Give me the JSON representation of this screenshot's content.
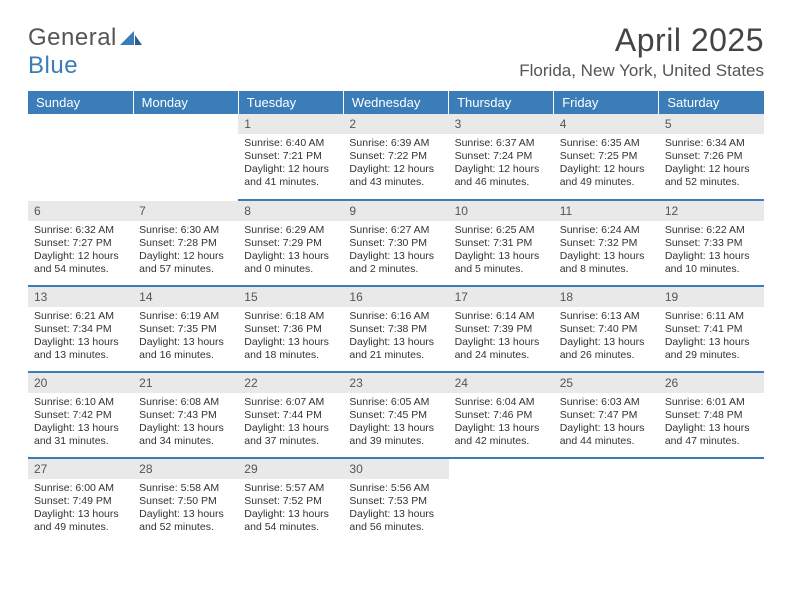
{
  "logo": {
    "word1": "General",
    "word2": "Blue"
  },
  "title": "April 2025",
  "location": "Florida, New York, United States",
  "colors": {
    "header_bg": "#3a7db8",
    "header_fg": "#ffffff",
    "daynum_bg": "#e9e9e9",
    "body_bg": "#ffffff",
    "rule": "#3a7db8",
    "text": "#333333"
  },
  "weekdays": [
    "Sunday",
    "Monday",
    "Tuesday",
    "Wednesday",
    "Thursday",
    "Friday",
    "Saturday"
  ],
  "weeks": [
    [
      {
        "empty": true
      },
      {
        "empty": true
      },
      {
        "n": "1",
        "sr": "Sunrise: 6:40 AM",
        "ss": "Sunset: 7:21 PM",
        "dl1": "Daylight: 12 hours",
        "dl2": "and 41 minutes."
      },
      {
        "n": "2",
        "sr": "Sunrise: 6:39 AM",
        "ss": "Sunset: 7:22 PM",
        "dl1": "Daylight: 12 hours",
        "dl2": "and 43 minutes."
      },
      {
        "n": "3",
        "sr": "Sunrise: 6:37 AM",
        "ss": "Sunset: 7:24 PM",
        "dl1": "Daylight: 12 hours",
        "dl2": "and 46 minutes."
      },
      {
        "n": "4",
        "sr": "Sunrise: 6:35 AM",
        "ss": "Sunset: 7:25 PM",
        "dl1": "Daylight: 12 hours",
        "dl2": "and 49 minutes."
      },
      {
        "n": "5",
        "sr": "Sunrise: 6:34 AM",
        "ss": "Sunset: 7:26 PM",
        "dl1": "Daylight: 12 hours",
        "dl2": "and 52 minutes."
      }
    ],
    [
      {
        "n": "6",
        "sr": "Sunrise: 6:32 AM",
        "ss": "Sunset: 7:27 PM",
        "dl1": "Daylight: 12 hours",
        "dl2": "and 54 minutes."
      },
      {
        "n": "7",
        "sr": "Sunrise: 6:30 AM",
        "ss": "Sunset: 7:28 PM",
        "dl1": "Daylight: 12 hours",
        "dl2": "and 57 minutes."
      },
      {
        "n": "8",
        "sr": "Sunrise: 6:29 AM",
        "ss": "Sunset: 7:29 PM",
        "dl1": "Daylight: 13 hours",
        "dl2": "and 0 minutes."
      },
      {
        "n": "9",
        "sr": "Sunrise: 6:27 AM",
        "ss": "Sunset: 7:30 PM",
        "dl1": "Daylight: 13 hours",
        "dl2": "and 2 minutes."
      },
      {
        "n": "10",
        "sr": "Sunrise: 6:25 AM",
        "ss": "Sunset: 7:31 PM",
        "dl1": "Daylight: 13 hours",
        "dl2": "and 5 minutes."
      },
      {
        "n": "11",
        "sr": "Sunrise: 6:24 AM",
        "ss": "Sunset: 7:32 PM",
        "dl1": "Daylight: 13 hours",
        "dl2": "and 8 minutes."
      },
      {
        "n": "12",
        "sr": "Sunrise: 6:22 AM",
        "ss": "Sunset: 7:33 PM",
        "dl1": "Daylight: 13 hours",
        "dl2": "and 10 minutes."
      }
    ],
    [
      {
        "n": "13",
        "sr": "Sunrise: 6:21 AM",
        "ss": "Sunset: 7:34 PM",
        "dl1": "Daylight: 13 hours",
        "dl2": "and 13 minutes."
      },
      {
        "n": "14",
        "sr": "Sunrise: 6:19 AM",
        "ss": "Sunset: 7:35 PM",
        "dl1": "Daylight: 13 hours",
        "dl2": "and 16 minutes."
      },
      {
        "n": "15",
        "sr": "Sunrise: 6:18 AM",
        "ss": "Sunset: 7:36 PM",
        "dl1": "Daylight: 13 hours",
        "dl2": "and 18 minutes."
      },
      {
        "n": "16",
        "sr": "Sunrise: 6:16 AM",
        "ss": "Sunset: 7:38 PM",
        "dl1": "Daylight: 13 hours",
        "dl2": "and 21 minutes."
      },
      {
        "n": "17",
        "sr": "Sunrise: 6:14 AM",
        "ss": "Sunset: 7:39 PM",
        "dl1": "Daylight: 13 hours",
        "dl2": "and 24 minutes."
      },
      {
        "n": "18",
        "sr": "Sunrise: 6:13 AM",
        "ss": "Sunset: 7:40 PM",
        "dl1": "Daylight: 13 hours",
        "dl2": "and 26 minutes."
      },
      {
        "n": "19",
        "sr": "Sunrise: 6:11 AM",
        "ss": "Sunset: 7:41 PM",
        "dl1": "Daylight: 13 hours",
        "dl2": "and 29 minutes."
      }
    ],
    [
      {
        "n": "20",
        "sr": "Sunrise: 6:10 AM",
        "ss": "Sunset: 7:42 PM",
        "dl1": "Daylight: 13 hours",
        "dl2": "and 31 minutes."
      },
      {
        "n": "21",
        "sr": "Sunrise: 6:08 AM",
        "ss": "Sunset: 7:43 PM",
        "dl1": "Daylight: 13 hours",
        "dl2": "and 34 minutes."
      },
      {
        "n": "22",
        "sr": "Sunrise: 6:07 AM",
        "ss": "Sunset: 7:44 PM",
        "dl1": "Daylight: 13 hours",
        "dl2": "and 37 minutes."
      },
      {
        "n": "23",
        "sr": "Sunrise: 6:05 AM",
        "ss": "Sunset: 7:45 PM",
        "dl1": "Daylight: 13 hours",
        "dl2": "and 39 minutes."
      },
      {
        "n": "24",
        "sr": "Sunrise: 6:04 AM",
        "ss": "Sunset: 7:46 PM",
        "dl1": "Daylight: 13 hours",
        "dl2": "and 42 minutes."
      },
      {
        "n": "25",
        "sr": "Sunrise: 6:03 AM",
        "ss": "Sunset: 7:47 PM",
        "dl1": "Daylight: 13 hours",
        "dl2": "and 44 minutes."
      },
      {
        "n": "26",
        "sr": "Sunrise: 6:01 AM",
        "ss": "Sunset: 7:48 PM",
        "dl1": "Daylight: 13 hours",
        "dl2": "and 47 minutes."
      }
    ],
    [
      {
        "n": "27",
        "sr": "Sunrise: 6:00 AM",
        "ss": "Sunset: 7:49 PM",
        "dl1": "Daylight: 13 hours",
        "dl2": "and 49 minutes."
      },
      {
        "n": "28",
        "sr": "Sunrise: 5:58 AM",
        "ss": "Sunset: 7:50 PM",
        "dl1": "Daylight: 13 hours",
        "dl2": "and 52 minutes."
      },
      {
        "n": "29",
        "sr": "Sunrise: 5:57 AM",
        "ss": "Sunset: 7:52 PM",
        "dl1": "Daylight: 13 hours",
        "dl2": "and 54 minutes."
      },
      {
        "n": "30",
        "sr": "Sunrise: 5:56 AM",
        "ss": "Sunset: 7:53 PM",
        "dl1": "Daylight: 13 hours",
        "dl2": "and 56 minutes."
      },
      {
        "empty": true
      },
      {
        "empty": true
      },
      {
        "empty": true
      }
    ]
  ]
}
